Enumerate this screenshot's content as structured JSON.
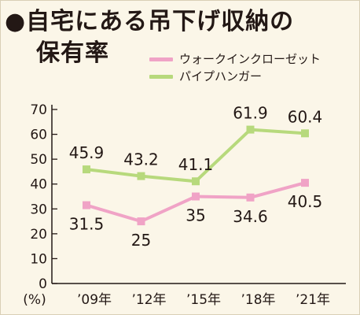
{
  "title": {
    "line1": "●自宅にある吊下げ収納の",
    "line2": "保有率"
  },
  "colors": {
    "walkin": "#f0a3c6",
    "pipe": "#b7d97c",
    "axis": "#231815",
    "background": "#fbf6e8"
  },
  "chart_data": {
    "type": "line",
    "title": "●自宅にある吊下げ収納の保有率",
    "unit_label": "(%)",
    "categories": [
      "’09年",
      "’12年",
      "’15年",
      "’18年",
      "’21年"
    ],
    "ylim": [
      0,
      70
    ],
    "yticks": [
      0,
      10,
      20,
      30,
      40,
      50,
      60,
      70
    ],
    "grid": false,
    "legend_position": "top-right",
    "series": [
      {
        "name": "ウォークインクローゼット",
        "color": "#f0a3c6",
        "values": [
          31.5,
          25,
          35,
          34.6,
          40.5
        ],
        "labels": [
          "31.5",
          "25",
          "35",
          "34.6",
          "40.5"
        ],
        "label_side": "below"
      },
      {
        "name": "パイプハンガー",
        "color": "#b7d97c",
        "values": [
          45.9,
          43.2,
          41.1,
          61.9,
          60.4
        ],
        "labels": [
          "45.9",
          "43.2",
          "41.1",
          "61.9",
          "60.4"
        ],
        "label_side": "above"
      }
    ]
  }
}
